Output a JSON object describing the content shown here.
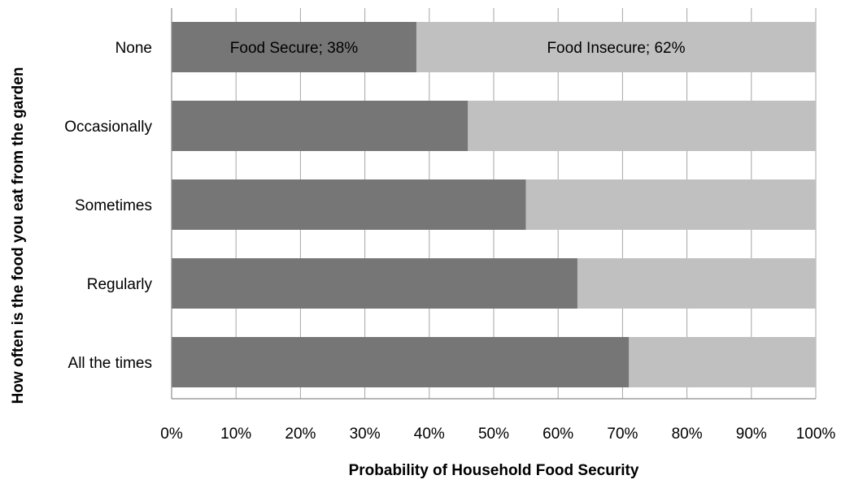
{
  "chart_data": {
    "type": "bar",
    "orientation": "horizontal",
    "stacked": true,
    "percent_stacked": true,
    "categories": [
      "None",
      "Occasionally",
      "Sometimes",
      "Regularly",
      "All the times"
    ],
    "series": [
      {
        "name": "Food Secure",
        "values": [
          38,
          46,
          55,
          63,
          71
        ],
        "color": "#767676"
      },
      {
        "name": "Food Insecure",
        "values": [
          62,
          54,
          45,
          37,
          29
        ],
        "color": "#c0c0c0"
      }
    ],
    "data_labels": [
      "Food Secure; 38%",
      "Food Insecure; 62%"
    ],
    "xlabel": "Probability of Household Food Security",
    "ylabel": "How often is the food you eat from the garden",
    "xlim": [
      0,
      100
    ],
    "x_ticks": [
      "0%",
      "10%",
      "20%",
      "30%",
      "40%",
      "50%",
      "60%",
      "70%",
      "80%",
      "90%",
      "100%"
    ],
    "grid": "vertical",
    "gridline_color": "#a6a6a6",
    "legend": "none"
  }
}
